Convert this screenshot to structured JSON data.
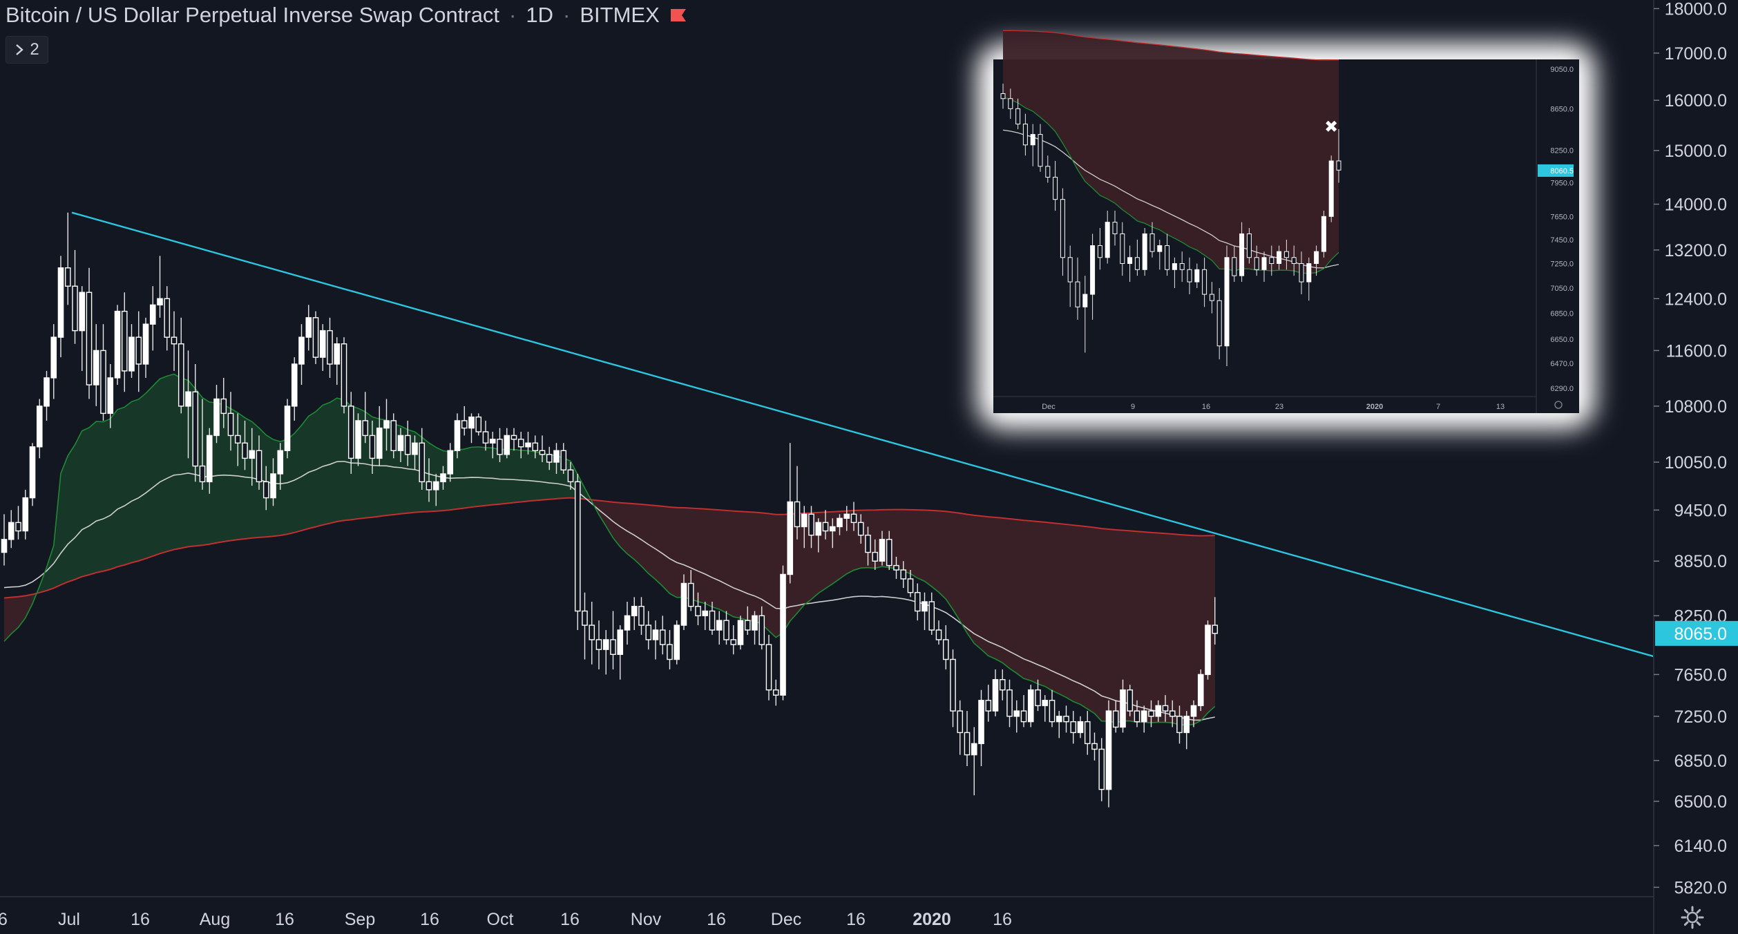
{
  "header": {
    "title": "Bitcoin / US Dollar Perpetual Inverse Swap Contract",
    "interval": "1D",
    "exchange": "BITMEX",
    "separator": "·"
  },
  "collapse_button": {
    "icon": "chevron-right-icon",
    "label": "2"
  },
  "settings_icon": "gear-icon",
  "colors": {
    "background": "#131722",
    "trendline": "#2cc6df",
    "ema_green": "#1e8a33",
    "ema_red": "#c32f2f",
    "ema_white": "#cfcfcf",
    "fill_green": "#173a29",
    "fill_red": "#3a1f26",
    "price_label": "#2cc6df",
    "flag": "#f05350",
    "text": "#d1d4dc"
  },
  "chart_data": [
    {
      "type": "candlestick",
      "title": "Bitcoin / US Dollar Perpetual Inverse Swap Contract",
      "y_scale": "log",
      "ylim": [
        5750,
        18200
      ],
      "y_ticks": [
        "5820.0",
        "6140.0",
        "6500.0",
        "6850.0",
        "7250.0",
        "7650.0",
        "8250.0",
        "8850.0",
        "9450.0",
        "10050.0",
        "10800.0",
        "11600.0",
        "12400.0",
        "13200.0",
        "14000.0",
        "15000.0",
        "16000.0",
        "17000.0",
        "18000.0"
      ],
      "x_ticks": [
        "6",
        "Jul",
        "16",
        "Aug",
        "16",
        "Sep",
        "16",
        "Oct",
        "16",
        "Nov",
        "16",
        "Dec",
        "16",
        "2020",
        "16"
      ],
      "current_price": "8065.0",
      "grid": false,
      "trendline": {
        "from": [
          "Jun 26",
          13850
        ],
        "to": [
          "Jan 21",
          7830
        ]
      },
      "series": [
        {
          "name": "",
          "role": "fast EMA",
          "color": "#1e8a33"
        },
        {
          "name": "",
          "role": "mid EMA",
          "color": "#cfcfcf"
        },
        {
          "name": "",
          "role": "slow EMA",
          "color": "#c32f2f"
        }
      ],
      "candles_ohlc": [
        [
          8950,
          9400,
          8800,
          9100
        ],
        [
          9100,
          9450,
          9000,
          9300
        ],
        [
          9300,
          9500,
          9100,
          9200
        ],
        [
          9200,
          9700,
          9100,
          9600
        ],
        [
          9600,
          10300,
          9500,
          10250
        ],
        [
          10250,
          10900,
          10100,
          10800
        ],
        [
          10800,
          11300,
          10600,
          11200
        ],
        [
          11200,
          12000,
          10900,
          11800
        ],
        [
          11800,
          13100,
          11500,
          12900
        ],
        [
          12900,
          13850,
          12300,
          12600
        ],
        [
          12600,
          13200,
          11700,
          11900
        ],
        [
          11900,
          12600,
          11300,
          12500
        ],
        [
          12500,
          12900,
          10900,
          11100
        ],
        [
          11100,
          12000,
          10800,
          11600
        ],
        [
          11600,
          12000,
          10600,
          10700
        ],
        [
          10700,
          11400,
          10500,
          11200
        ],
        [
          11200,
          12300,
          11100,
          12200
        ],
        [
          12200,
          12500,
          11000,
          11300
        ],
        [
          11300,
          12000,
          11200,
          11800
        ],
        [
          11800,
          12200,
          11000,
          11400
        ],
        [
          11400,
          12100,
          11200,
          12000
        ],
        [
          12000,
          12600,
          11600,
          12300
        ],
        [
          12300,
          13100,
          12100,
          12400
        ],
        [
          12400,
          12600,
          11600,
          11800
        ],
        [
          11800,
          12200,
          11300,
          11700
        ],
        [
          11700,
          12100,
          10700,
          10800
        ],
        [
          10800,
          11600,
          10100,
          11000
        ],
        [
          11000,
          11400,
          9800,
          10000
        ],
        [
          10000,
          10900,
          9700,
          9800
        ],
        [
          9800,
          10500,
          9650,
          10400
        ],
        [
          10400,
          11100,
          10300,
          10900
        ],
        [
          10900,
          11200,
          10500,
          10700
        ],
        [
          10700,
          11000,
          10200,
          10400
        ],
        [
          10400,
          10700,
          10000,
          10300
        ],
        [
          10300,
          10600,
          9950,
          10100
        ],
        [
          10100,
          10500,
          9750,
          10200
        ],
        [
          10200,
          10400,
          9700,
          9800
        ],
        [
          9800,
          10000,
          9450,
          9600
        ],
        [
          9600,
          10100,
          9500,
          9900
        ],
        [
          9900,
          10300,
          9700,
          10200
        ],
        [
          10200,
          10900,
          10100,
          10800
        ],
        [
          10800,
          11500,
          10600,
          11400
        ],
        [
          11400,
          12000,
          11100,
          11800
        ],
        [
          11800,
          12300,
          11600,
          12100
        ],
        [
          12100,
          12200,
          11400,
          11500
        ],
        [
          11500,
          12000,
          11300,
          11900
        ],
        [
          11900,
          12100,
          11200,
          11400
        ],
        [
          11400,
          11800,
          11100,
          11700
        ],
        [
          11700,
          11800,
          10700,
          10800
        ],
        [
          10800,
          11000,
          9900,
          10100
        ],
        [
          10100,
          10700,
          10000,
          10600
        ],
        [
          10600,
          11000,
          10300,
          10400
        ],
        [
          10400,
          10600,
          9900,
          10100
        ],
        [
          10100,
          10800,
          10000,
          10500
        ],
        [
          10500,
          10900,
          10200,
          10600
        ],
        [
          10600,
          10700,
          10100,
          10200
        ],
        [
          10200,
          10500,
          10050,
          10400
        ],
        [
          10400,
          10600,
          10000,
          10150
        ],
        [
          10150,
          10400,
          9950,
          10300
        ],
        [
          10300,
          10500,
          9700,
          9800
        ],
        [
          9800,
          10100,
          9550,
          9700
        ],
        [
          9700,
          9900,
          9500,
          9800
        ],
        [
          9800,
          10000,
          9700,
          9900
        ],
        [
          9900,
          10300,
          9800,
          10200
        ],
        [
          10200,
          10700,
          10100,
          10600
        ],
        [
          10600,
          10800,
          10400,
          10500
        ],
        [
          10500,
          10700,
          10300,
          10650
        ],
        [
          10650,
          10700,
          10400,
          10450
        ],
        [
          10450,
          10600,
          10200,
          10300
        ],
        [
          10300,
          10450,
          10100,
          10350
        ],
        [
          10350,
          10500,
          10050,
          10150
        ],
        [
          10150,
          10500,
          10100,
          10400
        ],
        [
          10400,
          10500,
          10200,
          10350
        ],
        [
          10350,
          10450,
          10100,
          10250
        ],
        [
          10250,
          10450,
          10150,
          10300
        ],
        [
          10300,
          10400,
          10100,
          10200
        ],
        [
          10200,
          10400,
          10050,
          10150
        ],
        [
          10150,
          10250,
          9950,
          10050
        ],
        [
          10050,
          10300,
          9900,
          10200
        ],
        [
          10200,
          10300,
          9900,
          9950
        ],
        [
          9950,
          10050,
          9700,
          9800
        ],
        [
          9800,
          9900,
          8100,
          8300
        ],
        [
          8300,
          8500,
          7800,
          8150
        ],
        [
          8150,
          8400,
          7750,
          8000
        ],
        [
          8000,
          8200,
          7700,
          7900
        ],
        [
          7900,
          8100,
          7650,
          8000
        ],
        [
          8000,
          8300,
          7700,
          7850
        ],
        [
          7850,
          8150,
          7600,
          8100
        ],
        [
          8100,
          8400,
          7950,
          8250
        ],
        [
          8250,
          8450,
          8100,
          8350
        ],
        [
          8350,
          8450,
          8050,
          8150
        ],
        [
          8150,
          8300,
          7900,
          8000
        ],
        [
          8000,
          8200,
          7800,
          8100
        ],
        [
          8100,
          8250,
          7850,
          7950
        ],
        [
          7950,
          8100,
          7700,
          7800
        ],
        [
          7800,
          8200,
          7750,
          8150
        ],
        [
          8150,
          8700,
          8100,
          8600
        ],
        [
          8600,
          8750,
          8300,
          8350
        ],
        [
          8350,
          8500,
          8150,
          8250
        ],
        [
          8250,
          8400,
          8100,
          8300
        ],
        [
          8300,
          8400,
          8050,
          8100
        ],
        [
          8100,
          8300,
          7950,
          8200
        ],
        [
          8200,
          8300,
          7950,
          8000
        ],
        [
          8000,
          8150,
          7850,
          7950
        ],
        [
          7950,
          8250,
          7900,
          8200
        ],
        [
          8200,
          8350,
          8050,
          8100
        ],
        [
          8100,
          8300,
          7950,
          8250
        ],
        [
          8250,
          8350,
          7900,
          7950
        ],
        [
          7950,
          8050,
          7400,
          7500
        ],
        [
          7500,
          7600,
          7350,
          7450
        ],
        [
          7450,
          8800,
          7400,
          8700
        ],
        [
          8700,
          10300,
          8600,
          9550
        ],
        [
          9550,
          10000,
          9100,
          9250
        ],
        [
          9250,
          9500,
          9000,
          9400
        ],
        [
          9400,
          9500,
          9000,
          9150
        ],
        [
          9150,
          9350,
          8950,
          9300
        ],
        [
          9300,
          9450,
          9100,
          9200
        ],
        [
          9200,
          9350,
          9000,
          9250
        ],
        [
          9250,
          9400,
          9150,
          9350
        ],
        [
          9350,
          9500,
          9200,
          9400
        ],
        [
          9400,
          9550,
          9200,
          9300
        ],
        [
          9300,
          9400,
          9050,
          9150
        ],
        [
          9150,
          9250,
          8800,
          8950
        ],
        [
          8950,
          9100,
          8750,
          8850
        ],
        [
          8850,
          9200,
          8800,
          9100
        ],
        [
          9100,
          9200,
          8750,
          8800
        ],
        [
          8800,
          8900,
          8650,
          8750
        ],
        [
          8750,
          8850,
          8550,
          8650
        ],
        [
          8650,
          8750,
          8450,
          8500
        ],
        [
          8500,
          8600,
          8200,
          8300
        ],
        [
          8300,
          8500,
          8100,
          8400
        ],
        [
          8400,
          8500,
          8050,
          8100
        ],
        [
          8100,
          8200,
          7950,
          8000
        ],
        [
          8000,
          8150,
          7700,
          7800
        ],
        [
          7800,
          7900,
          7150,
          7300
        ],
        [
          7300,
          7400,
          6900,
          7100
        ],
        [
          7100,
          7300,
          6800,
          6900
        ],
        [
          6900,
          7150,
          6550,
          7000
        ],
        [
          7000,
          7500,
          6800,
          7400
        ],
        [
          7400,
          7550,
          7200,
          7300
        ],
        [
          7300,
          7700,
          7250,
          7600
        ],
        [
          7600,
          7700,
          7400,
          7500
        ],
        [
          7500,
          7600,
          7150,
          7250
        ],
        [
          7250,
          7400,
          7100,
          7300
        ],
        [
          7300,
          7450,
          7150,
          7200
        ],
        [
          7200,
          7550,
          7150,
          7500
        ],
        [
          7500,
          7600,
          7300,
          7350
        ],
        [
          7350,
          7450,
          7200,
          7400
        ],
        [
          7400,
          7500,
          7150,
          7200
        ],
        [
          7200,
          7300,
          7050,
          7250
        ],
        [
          7250,
          7350,
          7100,
          7200
        ],
        [
          7200,
          7300,
          7000,
          7100
        ],
        [
          7100,
          7250,
          7050,
          7200
        ],
        [
          7200,
          7300,
          6900,
          7000
        ],
        [
          7000,
          7100,
          6850,
          6950
        ],
        [
          6950,
          7050,
          6500,
          6600
        ],
        [
          6600,
          7400,
          6450,
          7300
        ],
        [
          7300,
          7400,
          7100,
          7150
        ],
        [
          7150,
          7600,
          7100,
          7500
        ],
        [
          7500,
          7550,
          7250,
          7300
        ],
        [
          7300,
          7400,
          7150,
          7200
        ],
        [
          7200,
          7350,
          7100,
          7300
        ],
        [
          7300,
          7400,
          7150,
          7250
        ],
        [
          7250,
          7400,
          7200,
          7350
        ],
        [
          7350,
          7450,
          7200,
          7300
        ],
        [
          7300,
          7400,
          7150,
          7250
        ],
        [
          7250,
          7350,
          7000,
          7100
        ],
        [
          7100,
          7300,
          6950,
          7250
        ],
        [
          7250,
          7400,
          7150,
          7350
        ],
        [
          7350,
          7700,
          7300,
          7650
        ],
        [
          7650,
          8200,
          7600,
          8150
        ],
        [
          8150,
          8450,
          7950,
          8065
        ]
      ]
    },
    {
      "type": "candlestick",
      "role": "inset",
      "y_ticks": [
        "6290.0",
        "6470.0",
        "6650.0",
        "6850.0",
        "7050.0",
        "7250.0",
        "7450.0",
        "7650.0",
        "7950.0",
        "8250.0",
        "8650.0",
        "9050.0"
      ],
      "x_ticks": [
        "Dec",
        "9",
        "16",
        "23",
        "2020",
        "7",
        "13"
      ],
      "current_price": "8060.5",
      "marker": "✖"
    }
  ]
}
